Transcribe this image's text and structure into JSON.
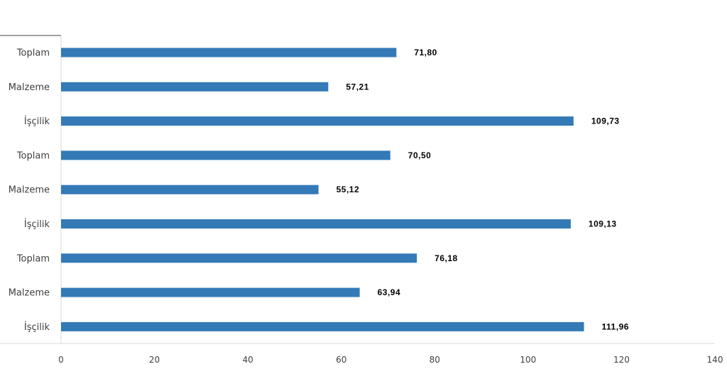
{
  "chart_data": {
    "type": "bar",
    "orientation": "horizontal",
    "categories": [
      "Toplam",
      "Malzeme",
      "İşçilik",
      "Toplam",
      "Malzeme",
      "İşçilik",
      "Toplam",
      "Malzeme",
      "İşçilik"
    ],
    "values": [
      71.8,
      57.21,
      109.73,
      70.5,
      55.12,
      109.13,
      76.18,
      63.94,
      111.96
    ],
    "value_labels": [
      "71,80",
      "57,21",
      "109,73",
      "70,50",
      "55,12",
      "109,13",
      "76,18",
      "63,94",
      "111,96"
    ],
    "xlim": [
      0,
      140
    ],
    "xticks": [
      0,
      20,
      40,
      60,
      80,
      100,
      120,
      140
    ],
    "grid": false,
    "legend": "none",
    "bar_color": "#337AB7"
  }
}
